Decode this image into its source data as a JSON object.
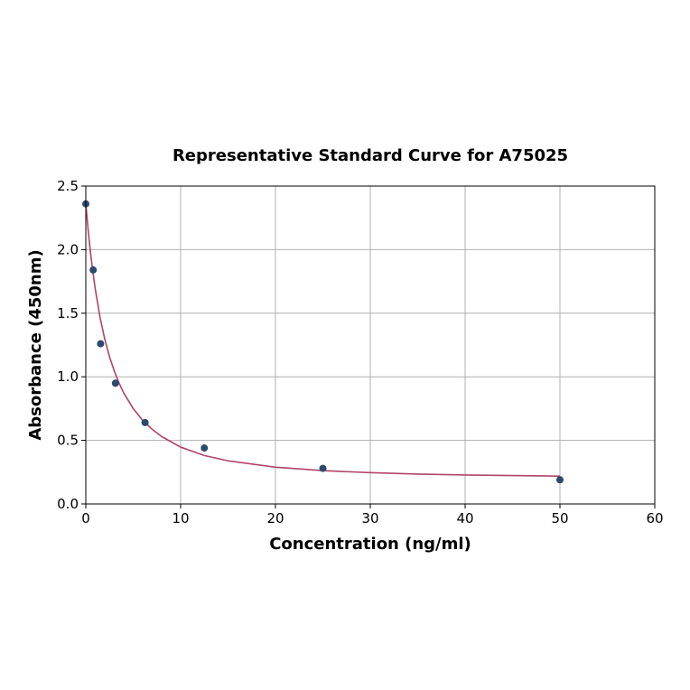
{
  "chart_data": {
    "type": "scatter",
    "title": "Representative Standard Curve for A75025",
    "xlabel": "Concentration (ng/ml)",
    "ylabel": "Absorbance (450nm)",
    "xlim": [
      0,
      60
    ],
    "ylim": [
      0,
      2.5
    ],
    "x_ticks": [
      "0",
      "10",
      "20",
      "30",
      "40",
      "50",
      "60"
    ],
    "y_ticks": [
      "0.0",
      "0.5",
      "1.0",
      "1.5",
      "2.0",
      "2.5"
    ],
    "grid": true,
    "points": {
      "x": [
        0,
        0.78,
        1.56,
        3.125,
        6.25,
        12.5,
        25,
        50
      ],
      "y": [
        2.36,
        1.84,
        1.26,
        0.95,
        0.64,
        0.44,
        0.28,
        0.19
      ]
    },
    "fit_curve": {
      "x": [
        0,
        0.25,
        0.5,
        0.75,
        1,
        1.5,
        2,
        2.5,
        3,
        3.5,
        4,
        5,
        6,
        7,
        8,
        10,
        12.5,
        15,
        20,
        25,
        30,
        35,
        40,
        45,
        50
      ],
      "y": [
        2.36,
        2.152,
        1.974,
        1.822,
        1.689,
        1.468,
        1.296,
        1.158,
        1.046,
        0.952,
        0.873,
        0.75,
        0.657,
        0.587,
        0.53,
        0.447,
        0.381,
        0.339,
        0.289,
        0.262,
        0.246,
        0.235,
        0.228,
        0.223,
        0.219
      ]
    },
    "colors": {
      "point": "#2b4a6e",
      "curve": "#b04469",
      "grid": "#b0b0b0",
      "axis": "#000000"
    }
  }
}
